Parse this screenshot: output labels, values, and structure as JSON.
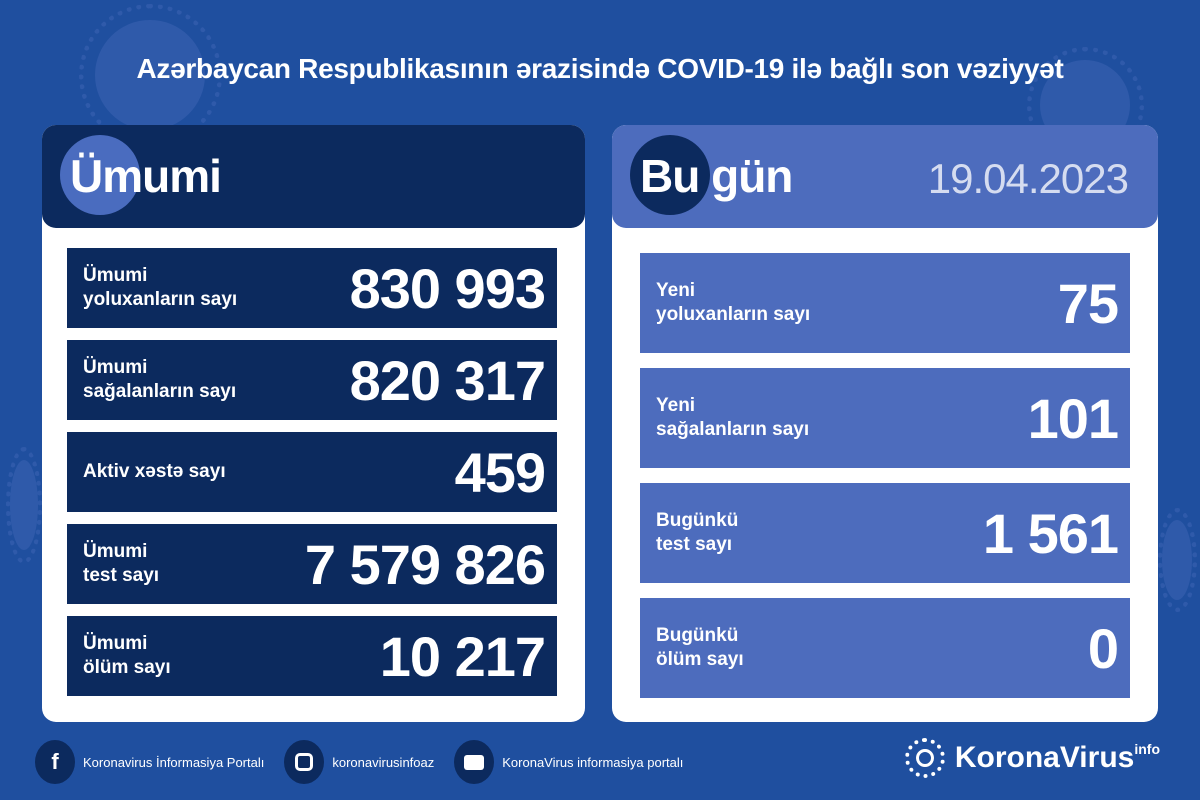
{
  "title": "Azərbaycan Respublikasının ərazisində COVID-19 ilə bağlı son vəziyyət",
  "total": {
    "heading": "Ümumi",
    "rows": [
      {
        "label1": "Ümumi",
        "label2": "yoluxanların sayı",
        "value": "830 993"
      },
      {
        "label1": "Ümumi",
        "label2": "sağalanların sayı",
        "value": "820 317"
      },
      {
        "label1": "Aktiv xəstə sayı",
        "label2": "",
        "value": "459"
      },
      {
        "label1": "Ümumi",
        "label2": "test sayı",
        "value": "7 579 826"
      },
      {
        "label1": "Ümumi",
        "label2": "ölüm sayı",
        "value": "10 217"
      }
    ]
  },
  "today": {
    "heading": "Bu gün",
    "date": "19.04.2023",
    "rows": [
      {
        "label1": "Yeni",
        "label2": "yoluxanların sayı",
        "value": "75"
      },
      {
        "label1": "Yeni",
        "label2": "sağalanların sayı",
        "value": "101"
      },
      {
        "label1": "Bugünkü",
        "label2": "test sayı",
        "value": "1 561"
      },
      {
        "label1": "Bugünkü",
        "label2": "ölüm sayı",
        "value": "0"
      }
    ]
  },
  "footer": {
    "facebook": "Koronavirus İnformasiya Portalı",
    "instagram": "koronavirusinfoaz",
    "youtube": "KoronaVirus informasiya portalı",
    "brand": "KoronaVirus",
    "brand_sup": "info"
  },
  "colors": {
    "background": "#1f4f9f",
    "navy": "#0c2a5e",
    "light_blue": "#4d6cbd"
  }
}
